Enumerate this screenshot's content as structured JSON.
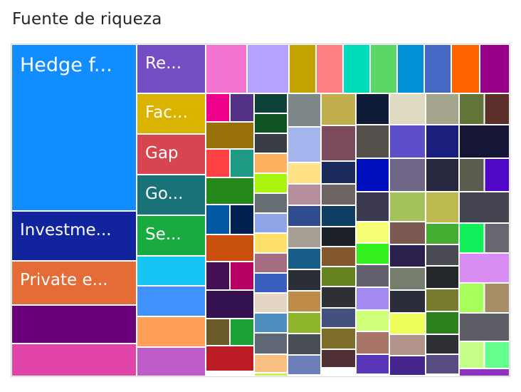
{
  "title": "Fuente de riqueza",
  "chart_data": {
    "type": "treemap",
    "title": "Fuente de riqueza",
    "items": [
      {
        "label": "Hedge f...",
        "value": 40,
        "color": "#118DFF"
      },
      {
        "label": "Investme...",
        "value": 8,
        "color": "#12239E"
      },
      {
        "label": "Private e...",
        "value": 7,
        "color": "#E66C37"
      },
      {
        "label": "",
        "value": 6,
        "color": "#6B007B"
      },
      {
        "label": "",
        "value": 5,
        "color": "#E044A7"
      },
      {
        "label": "Re...",
        "value": 7,
        "color": "#744EC2"
      },
      {
        "label": "Fac...",
        "value": 4.5,
        "color": "#D9B300"
      },
      {
        "label": "Gap",
        "value": 4.5,
        "color": "#D64550"
      },
      {
        "label": "Go...",
        "value": 4.5,
        "color": "#197278"
      },
      {
        "label": "Se...",
        "value": 4.5,
        "color": "#1AAB40"
      },
      {
        "label": "",
        "value": 4,
        "color": "#15C6F4"
      },
      {
        "label": "",
        "value": 4,
        "color": "#4092FF"
      },
      {
        "label": "",
        "value": 4,
        "color": "#FFA058"
      },
      {
        "label": "",
        "value": 4,
        "color": "#BE5DC9"
      },
      {
        "label": "",
        "value": 3,
        "color": "#F472D0"
      },
      {
        "label": "",
        "value": 3,
        "color": "#B5A1FF"
      },
      {
        "label": "",
        "value": 2,
        "color": "#C4A200"
      },
      {
        "label": "",
        "value": 2,
        "color": "#FF8080"
      },
      {
        "label": "",
        "value": 2,
        "color": "#00DBBC"
      },
      {
        "label": "",
        "value": 2,
        "color": "#5BD667"
      },
      {
        "label": "",
        "value": 2,
        "color": "#0091D5"
      },
      {
        "label": "",
        "value": 2,
        "color": "#4668C5"
      },
      {
        "label": "",
        "value": 2,
        "color": "#FF6300"
      },
      {
        "label": "",
        "value": 2,
        "color": "#99008A"
      }
    ],
    "small_tile_colors": [
      "#EC008C",
      "#533285",
      "#99700A",
      "#FF4141",
      "#1F9A85",
      "#25891C",
      "#0057A2",
      "#002050",
      "#C94F0F",
      "#450F54",
      "#B60064",
      "#34124F",
      "#6A5A29",
      "#1BA136",
      "#BB1B24",
      "#0E4238",
      "#0F5323",
      "#383C45",
      "#FBB15E",
      "#A9F50F",
      "#666E73",
      "#8FA5E7",
      "#FFE06A",
      "#A66E82",
      "#3B5FC0",
      "#E3D6C4",
      "#4E8FBF",
      "#606875",
      "#F9C181",
      "#C8F054",
      "#7E8889",
      "#A5B5ED",
      "#FFE285",
      "#B68D9A",
      "#2F4C8E",
      "#A89F94",
      "#175F8A",
      "#2A2F37",
      "#BE8B49",
      "#8FB52D",
      "#4A4F55",
      "#6D7EB9",
      "#C1AE4C",
      "#7B4A5C",
      "#1B2C5C",
      "#6E6461",
      "#0D3D60",
      "#1C2128",
      "#82582C",
      "#66821F",
      "#2E3035",
      "#45517C",
      "#7D6D28",
      "#4E3035",
      "#0F1B37",
      "#56504D",
      "#0010BE",
      "#3B3A50",
      "#F6FF73",
      "#35F01F",
      "#636170",
      "#A28AF2",
      "#CFFF7A",
      "#A87567",
      "#5A36B8",
      "#DFDBC2",
      "#5C4FC9",
      "#6F6587",
      "#A3C25A",
      "#7A5A50",
      "#2B1F4C",
      "#757D6E",
      "#2A2D39",
      "#EEFF5C",
      "#B1948A",
      "#43258B",
      "#A6A68F",
      "#1A1F7E",
      "#27273F",
      "#BCBA4E",
      "#43AE32",
      "#4A4A55",
      "#23262A",
      "#777C2E",
      "#2E7F1E",
      "#2F3036",
      "#574B82",
      "#637439",
      "#5C2F2A",
      "#151635",
      "#5A5D4D",
      "#5107C7",
      "#444450",
      "#11F05A",
      "#686770",
      "#D98CF2",
      "#A7FF5C",
      "#A58E65",
      "#5E5E66",
      "#C5FF8A",
      "#64FF8C",
      "#8F32C1",
      "#D6E0C3",
      "#848088",
      "#C9F48F",
      "#0A0F2B",
      "#5D5A5D",
      "#E7A6F0",
      "#1E1C5E",
      "#A1FF76"
    ]
  }
}
